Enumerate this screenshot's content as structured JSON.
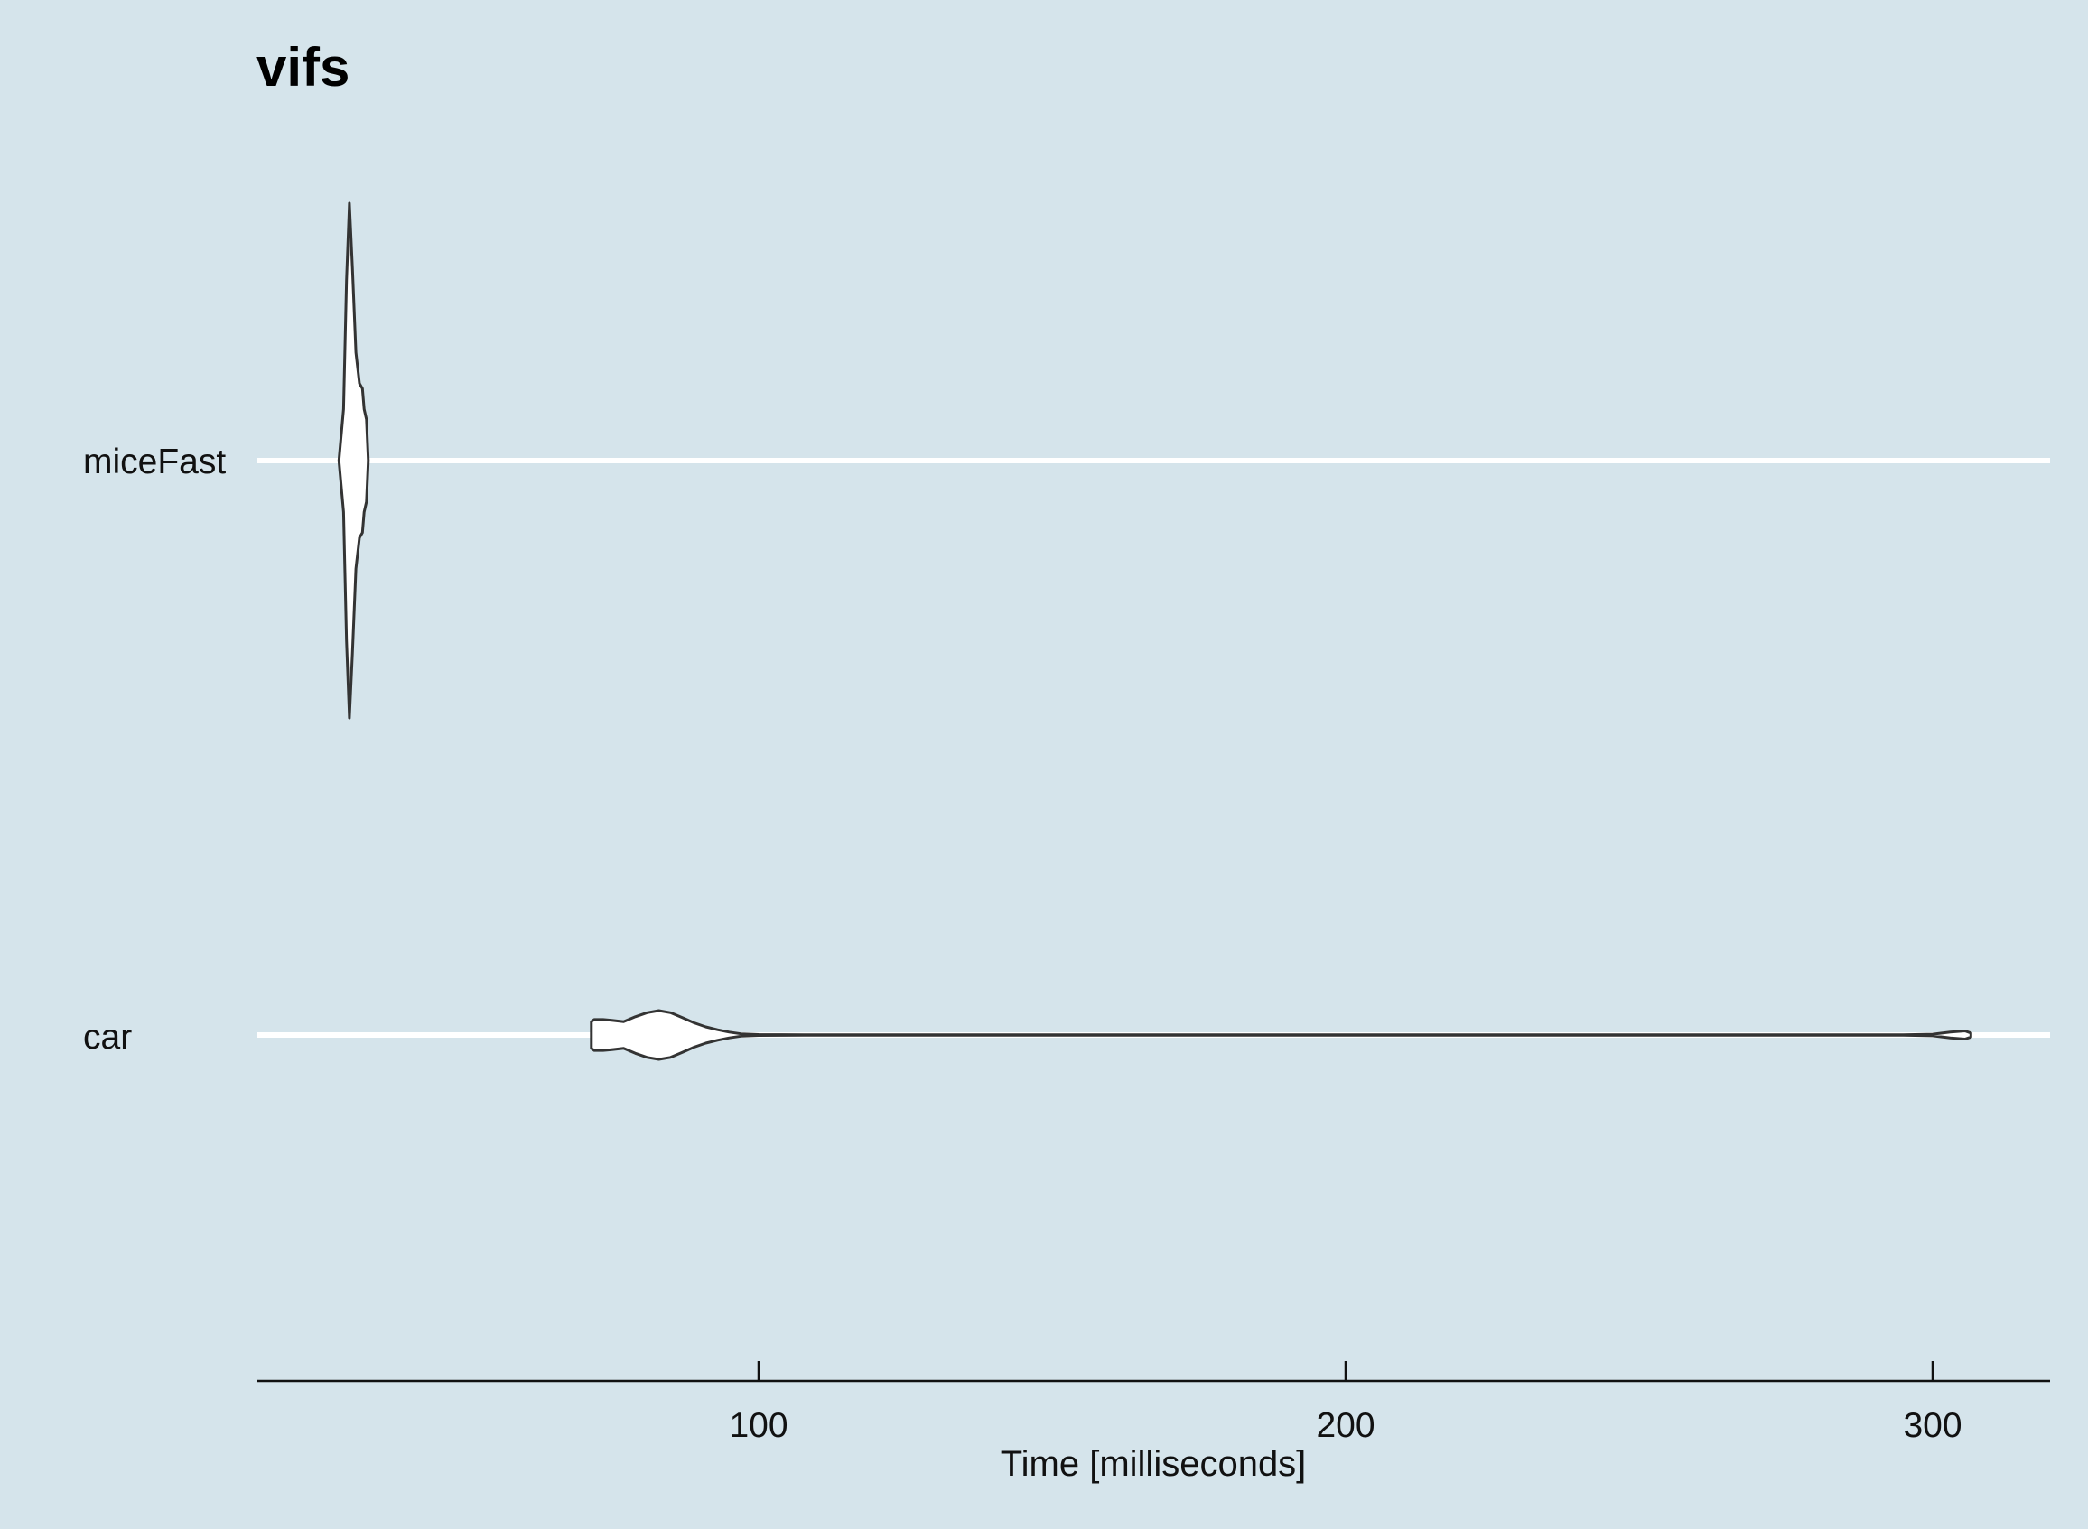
{
  "chart_data": {
    "type": "violin",
    "orientation": "horizontal",
    "title": "vifs",
    "xlabel": "Time [milliseconds]",
    "ylabel": "",
    "categories": [
      "miceFast",
      "car"
    ],
    "x_ticks": [
      100,
      200,
      300
    ],
    "xlim": [
      15,
      320
    ],
    "grid": "horizontal-major",
    "legend": "none",
    "colors": {
      "background": "#d5e4eb",
      "gridline": "#ffffff",
      "violin_fill": "#ffffff",
      "violin_outline": "#333333",
      "axis": "#111111"
    },
    "series": [
      {
        "category": "miceFast",
        "min": 28.5,
        "max": 33.5,
        "density": [
          [
            28.5,
            0.0
          ],
          [
            29.3,
            0.2
          ],
          [
            29.8,
            0.7
          ],
          [
            30.3,
            1.0
          ],
          [
            30.8,
            0.75
          ],
          [
            31.4,
            0.42
          ],
          [
            32.0,
            0.3
          ],
          [
            32.5,
            0.28
          ],
          [
            32.8,
            0.2
          ],
          [
            33.2,
            0.16
          ],
          [
            33.5,
            0.0
          ]
        ]
      },
      {
        "category": "car",
        "min": 71.5,
        "max": 306.5,
        "density": [
          [
            71.5,
            0.33
          ],
          [
            72.0,
            0.38
          ],
          [
            73.5,
            0.38
          ],
          [
            75.0,
            0.36
          ],
          [
            77.0,
            0.33
          ],
          [
            79.0,
            0.45
          ],
          [
            81.0,
            0.55
          ],
          [
            83.0,
            0.6
          ],
          [
            85.0,
            0.55
          ],
          [
            87.0,
            0.43
          ],
          [
            89.0,
            0.3
          ],
          [
            91.0,
            0.2
          ],
          [
            93.0,
            0.13
          ],
          [
            95.0,
            0.07
          ],
          [
            97.0,
            0.03
          ],
          [
            100.0,
            0.01
          ],
          [
            110.0,
            0.004
          ],
          [
            200.0,
            0.004
          ],
          [
            295.0,
            0.004
          ],
          [
            300.0,
            0.02
          ],
          [
            303.0,
            0.07
          ],
          [
            305.5,
            0.1
          ],
          [
            306.5,
            0.05
          ]
        ]
      }
    ]
  }
}
